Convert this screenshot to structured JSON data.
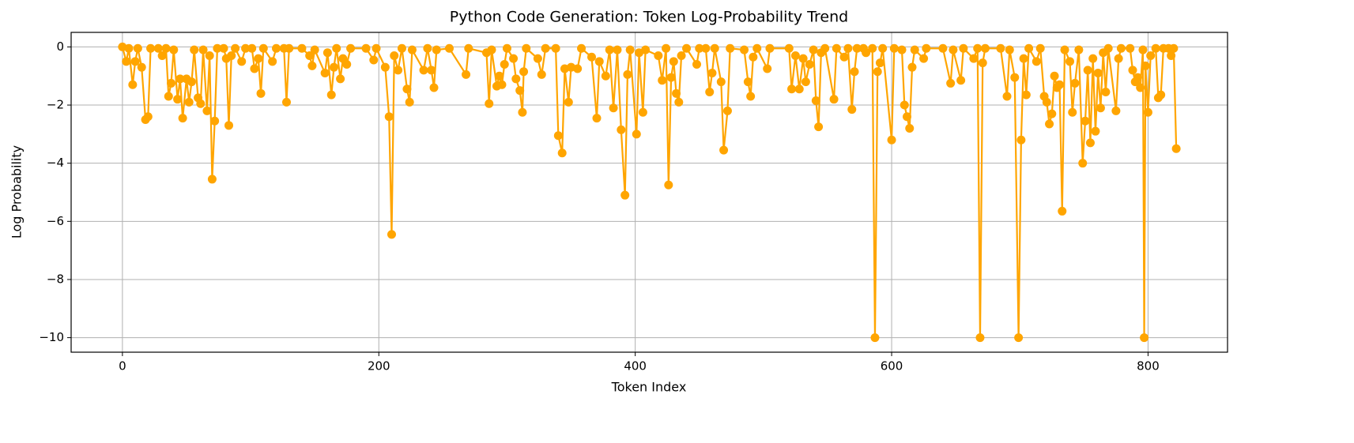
{
  "chart_data": {
    "type": "line",
    "title": "Python Code Generation: Token Log-Probability Trend",
    "x_label": "Token Index",
    "y_label": "Log Probability",
    "xlim": [
      -40,
      862
    ],
    "ylim": [
      -10.5,
      0.5
    ],
    "xticks": [
      0,
      200,
      400,
      600,
      800
    ],
    "yticks": [
      {
        "value": 0,
        "label": "0"
      },
      {
        "value": -2,
        "label": "−2"
      },
      {
        "value": -4,
        "label": "−4"
      },
      {
        "value": -6,
        "label": "−6"
      },
      {
        "value": -8,
        "label": "−8"
      },
      {
        "value": -10,
        "label": "−10"
      }
    ],
    "grid": true,
    "series": [
      {
        "color": "#ffa500",
        "x": [
          0,
          3,
          5,
          8,
          10,
          12,
          15,
          18,
          20,
          22,
          28,
          31,
          34,
          36,
          38,
          40,
          43,
          45,
          47,
          50,
          52,
          54,
          56,
          59,
          61,
          63,
          66,
          68,
          70,
          72,
          74,
          79,
          81,
          83,
          85,
          88,
          93,
          96,
          101,
          103,
          106,
          108,
          110,
          117,
          120,
          126,
          128,
          130,
          140,
          146,
          148,
          150,
          158,
          160,
          163,
          165,
          167,
          170,
          172,
          175,
          178,
          190,
          196,
          198,
          205,
          208,
          210,
          212,
          215,
          218,
          222,
          224,
          226,
          235,
          238,
          241,
          243,
          245,
          255,
          268,
          270,
          284,
          286,
          288,
          292,
          294,
          296,
          298,
          300,
          305,
          307,
          310,
          312,
          313,
          315,
          324,
          327,
          330,
          338,
          340,
          343,
          345,
          348,
          350,
          355,
          358,
          366,
          370,
          372,
          377,
          380,
          383,
          386,
          389,
          392,
          394,
          396,
          401,
          403,
          406,
          408,
          418,
          421,
          424,
          426,
          428,
          430,
          432,
          434,
          436,
          440,
          448,
          450,
          455,
          458,
          460,
          462,
          467,
          469,
          472,
          474,
          485,
          488,
          490,
          492,
          495,
          503,
          505,
          520,
          522,
          525,
          528,
          531,
          533,
          536,
          539,
          541,
          543,
          545,
          548,
          555,
          557,
          563,
          566,
          569,
          571,
          573,
          578,
          580,
          585,
          587,
          589,
          591,
          593,
          600,
          602,
          608,
          610,
          612,
          614,
          616,
          618,
          625,
          627,
          640,
          646,
          648,
          654,
          656,
          664,
          667,
          669,
          671,
          673,
          685,
          690,
          692,
          696,
          699,
          701,
          703,
          705,
          707,
          713,
          716,
          719,
          721,
          723,
          725,
          727,
          729,
          731,
          733,
          735,
          739,
          741,
          743,
          746,
          749,
          751,
          753,
          755,
          757,
          759,
          761,
          763,
          765,
          767,
          769,
          775,
          777,
          779,
          786,
          788,
          790,
          792,
          794,
          796,
          797,
          798,
          800,
          802,
          806,
          808,
          810,
          812,
          816,
          818,
          820,
          822
        ],
        "values": [
          0,
          -0.5,
          -0.05,
          -1.3,
          -0.5,
          -0.05,
          -0.7,
          -2.5,
          -2.4,
          -0.05,
          -0.05,
          -0.3,
          -0.05,
          -1.7,
          -1.25,
          -0.1,
          -1.8,
          -1.1,
          -2.45,
          -1.1,
          -1.9,
          -1.2,
          -0.1,
          -1.75,
          -1.95,
          -0.1,
          -2.2,
          -0.3,
          -4.55,
          -2.55,
          -0.05,
          -0.05,
          -0.4,
          -2.7,
          -0.3,
          -0.05,
          -0.5,
          -0.05,
          -0.05,
          -0.75,
          -0.4,
          -1.6,
          -0.05,
          -0.5,
          -0.05,
          -0.05,
          -1.9,
          -0.05,
          -0.05,
          -0.3,
          -0.65,
          -0.1,
          -0.9,
          -0.2,
          -1.65,
          -0.7,
          -0.05,
          -1.1,
          -0.4,
          -0.6,
          -0.05,
          -0.05,
          -0.45,
          -0.05,
          -0.7,
          -2.4,
          -6.45,
          -0.3,
          -0.8,
          -0.05,
          -1.45,
          -1.9,
          -0.1,
          -0.8,
          -0.05,
          -0.8,
          -1.4,
          -0.1,
          -0.05,
          -0.95,
          -0.05,
          -0.2,
          -1.95,
          -0.1,
          -1.35,
          -1.0,
          -1.3,
          -0.6,
          -0.05,
          -0.4,
          -1.1,
          -1.5,
          -2.25,
          -0.85,
          -0.05,
          -0.4,
          -0.95,
          -0.05,
          -0.05,
          -3.05,
          -3.65,
          -0.75,
          -1.9,
          -0.7,
          -0.75,
          -0.05,
          -0.35,
          -2.45,
          -0.5,
          -1.0,
          -0.1,
          -2.1,
          -0.1,
          -2.85,
          -5.1,
          -0.95,
          -0.1,
          -3.0,
          -0.2,
          -2.25,
          -0.1,
          -0.3,
          -1.15,
          -0.05,
          -4.75,
          -1.05,
          -0.5,
          -1.6,
          -1.9,
          -0.3,
          -0.05,
          -0.6,
          -0.05,
          -0.05,
          -1.55,
          -0.9,
          -0.05,
          -1.2,
          -3.55,
          -2.2,
          -0.05,
          -0.1,
          -1.2,
          -1.7,
          -0.35,
          -0.05,
          -0.75,
          -0.05,
          -0.05,
          -1.45,
          -0.3,
          -1.45,
          -0.4,
          -1.2,
          -0.6,
          -0.1,
          -1.85,
          -2.75,
          -0.2,
          -0.05,
          -1.8,
          -0.05,
          -0.35,
          -0.05,
          -2.15,
          -0.85,
          -0.05,
          -0.05,
          -0.2,
          -0.05,
          -10,
          -0.85,
          -0.55,
          -0.05,
          -3.2,
          -0.05,
          -0.1,
          -2.0,
          -2.4,
          -2.8,
          -0.7,
          -0.1,
          -0.4,
          -0.05,
          -0.05,
          -1.25,
          -0.1,
          -1.15,
          -0.05,
          -0.4,
          -0.05,
          -10,
          -0.55,
          -0.05,
          -0.05,
          -1.7,
          -0.1,
          -1.05,
          -10,
          -3.2,
          -0.4,
          -1.65,
          -0.05,
          -0.5,
          -0.05,
          -1.7,
          -1.9,
          -2.65,
          -2.3,
          -1.0,
          -1.4,
          -1.3,
          -5.65,
          -0.1,
          -0.5,
          -2.25,
          -1.25,
          -0.1,
          -4.0,
          -2.55,
          -0.8,
          -3.3,
          -0.4,
          -2.9,
          -0.9,
          -2.1,
          -0.2,
          -1.55,
          -0.05,
          -2.2,
          -0.4,
          -0.05,
          -0.05,
          -0.8,
          -1.2,
          -1.05,
          -1.4,
          -0.1,
          -10,
          -0.65,
          -2.25,
          -0.3,
          -0.05,
          -1.75,
          -1.65,
          -0.05,
          -0.05,
          -0.3,
          -0.05,
          -3.5
        ]
      }
    ]
  }
}
